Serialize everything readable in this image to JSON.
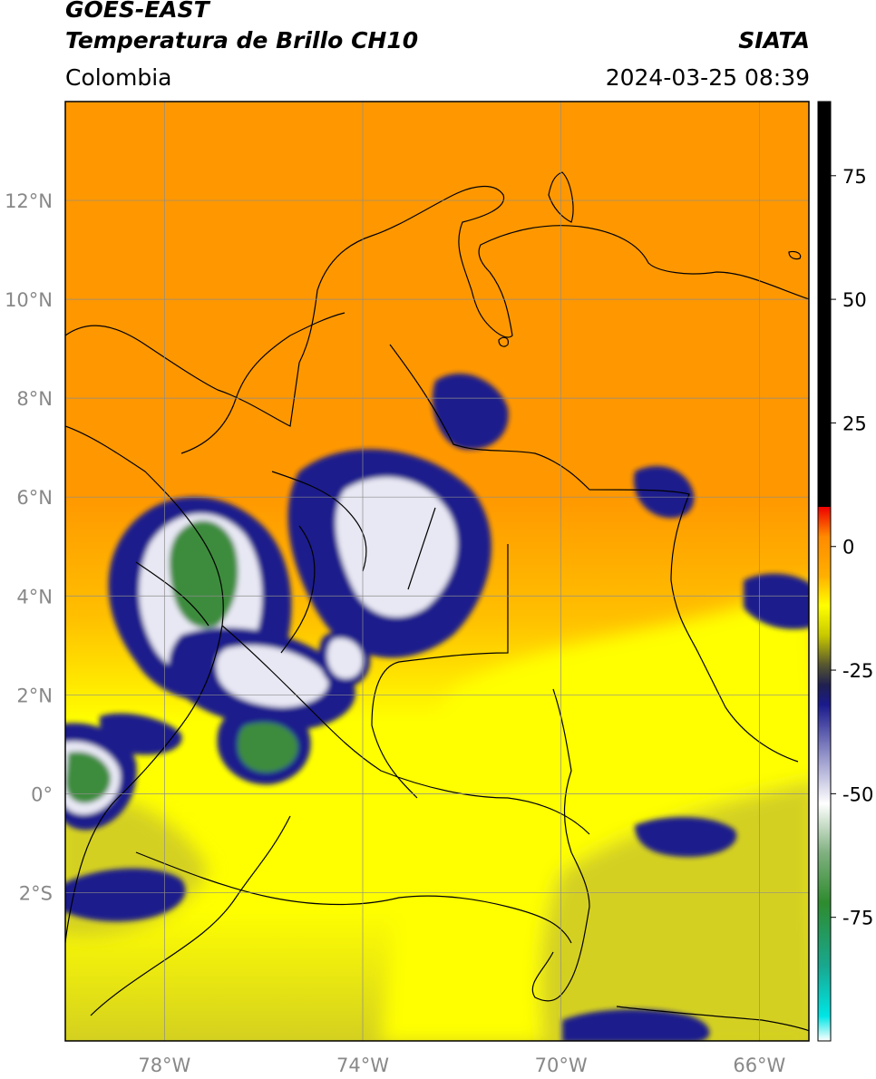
{
  "header": {
    "satellite": "GOES-EAST",
    "product": "Temperatura de Brillo CH10",
    "region": "Colombia",
    "agency": "SIATA",
    "timestamp": "2024-03-25 08:39"
  },
  "map": {
    "lon_range": [
      -80,
      -65
    ],
    "lat_range": [
      -5,
      14
    ],
    "lon_ticks": [
      {
        "value": -78,
        "label": "78°W"
      },
      {
        "value": -74,
        "label": "74°W"
      },
      {
        "value": -70,
        "label": "70°W"
      },
      {
        "value": -66,
        "label": "66°W"
      }
    ],
    "lat_ticks": [
      {
        "value": 12,
        "label": "12°N"
      },
      {
        "value": 10,
        "label": "10°N"
      },
      {
        "value": 8,
        "label": "8°N"
      },
      {
        "value": 6,
        "label": "6°N"
      },
      {
        "value": 4,
        "label": "4°N"
      },
      {
        "value": 2,
        "label": "2°N"
      },
      {
        "value": 0,
        "label": "0°"
      },
      {
        "value": -2,
        "label": "2°S"
      }
    ],
    "grid": true
  },
  "colorbar": {
    "unit_range": [
      -100,
      90
    ],
    "ticks": [
      {
        "value": 75,
        "label": "75"
      },
      {
        "value": 50,
        "label": "50"
      },
      {
        "value": 25,
        "label": "25"
      },
      {
        "value": 0,
        "label": "0"
      },
      {
        "value": -25,
        "label": "-25"
      },
      {
        "value": -50,
        "label": "-50"
      },
      {
        "value": -75,
        "label": "-75"
      }
    ],
    "stops": [
      {
        "value": -100,
        "color": "#ffffff"
      },
      {
        "value": -95,
        "color": "#00e5e5"
      },
      {
        "value": -85,
        "color": "#18a890"
      },
      {
        "value": -72,
        "color": "#2e8b2e"
      },
      {
        "value": -62,
        "color": "#7fb07f"
      },
      {
        "value": -52,
        "color": "#ffffff"
      },
      {
        "value": -42,
        "color": "#9090c8"
      },
      {
        "value": -32,
        "color": "#1a1a8c"
      },
      {
        "value": -28,
        "color": "#202050"
      },
      {
        "value": -24,
        "color": "#555530"
      },
      {
        "value": -18,
        "color": "#c8c800"
      },
      {
        "value": -12,
        "color": "#ffff00"
      },
      {
        "value": -6,
        "color": "#ffb000"
      },
      {
        "value": 2,
        "color": "#ff8a00"
      },
      {
        "value": 8,
        "color": "#ee0000"
      },
      {
        "value": 8.01,
        "color": "#000000"
      },
      {
        "value": 90,
        "color": "#000000"
      }
    ]
  },
  "field_colors": {
    "warm": "#ff9800",
    "mid": "#ffc000",
    "cool": "#ffff00",
    "olive": "#d4d020",
    "cold_blue": "#1a1a8c",
    "cold_white": "#e8e8f4",
    "cold_green": "#3c8c3c"
  }
}
